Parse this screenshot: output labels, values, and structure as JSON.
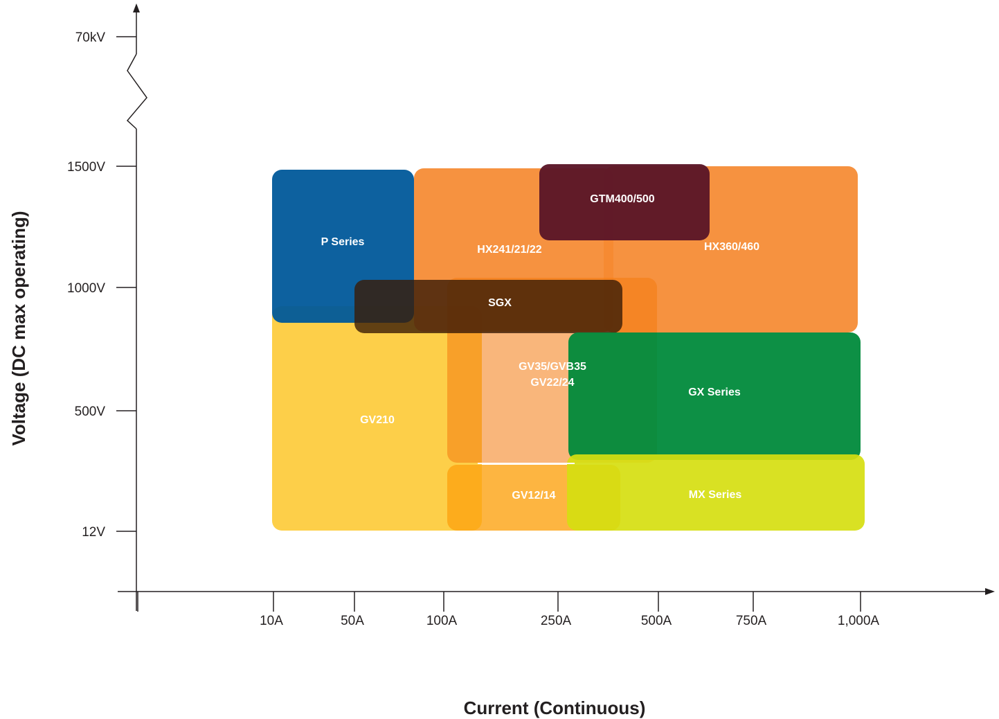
{
  "chart_data": {
    "type": "range-region",
    "title": "",
    "xlabel": "Current (Continuous)",
    "ylabel": "Voltage (DC max operating)",
    "x_ticks": [
      "10A",
      "50A",
      "100A",
      "250A",
      "500A",
      "750A",
      "1,000A"
    ],
    "y_ticks": [
      "12V",
      "500V",
      "1000V",
      "1500V",
      "70kV"
    ],
    "grid": false,
    "legend": "none",
    "regions": [
      {
        "name": "GV210",
        "label_lines": [
          "GV210"
        ],
        "x_range": [
          "10A",
          "100A+"
        ],
        "y_range": [
          "12V",
          "800V+"
        ],
        "color": "#fdcb3a",
        "opacity": 0.92
      },
      {
        "name": "P Series",
        "label_lines": [
          "P Series"
        ],
        "x_range": [
          "10A",
          "80A"
        ],
        "y_range": [
          "850V",
          "1500V"
        ],
        "color": "#00599a",
        "opacity": 0.95
      },
      {
        "name": "HX241/21/22",
        "label_lines": [
          "HX241/21/22"
        ],
        "x_range": [
          "80A",
          "300A"
        ],
        "y_range": [
          "800V",
          "1500V"
        ],
        "color": "#f58a31",
        "opacity": 0.93
      },
      {
        "name": "HX360/460",
        "label_lines": [
          "HX360/460"
        ],
        "x_range": [
          "300A",
          "1,000A"
        ],
        "y_range": [
          "800V",
          "1500V"
        ],
        "color": "#f58a31",
        "opacity": 0.93
      },
      {
        "name": "GV35/GVB35 GV22/24",
        "label_lines": [
          "GV35/GVB35",
          "GV22/24"
        ],
        "x_range": [
          "100A",
          "500A"
        ],
        "y_range": [
          "250V",
          "1050V"
        ],
        "color": "#f47a0e",
        "opacity": 0.55
      },
      {
        "name": "GV12/14",
        "label_lines": [
          "GV12/14"
        ],
        "x_range": [
          "100A",
          "300A"
        ],
        "y_range": [
          "12V",
          "270V"
        ],
        "color": "#fca212",
        "opacity": 0.8
      },
      {
        "name": "SGX",
        "label_lines": [
          "SGX"
        ],
        "x_range": [
          "50A",
          "350A"
        ],
        "y_range": [
          "800V",
          "1050V"
        ],
        "color": "#3a1b06",
        "opacity": 0.8
      },
      {
        "name": "GX Series",
        "label_lines": [
          "GX Series"
        ],
        "x_range": [
          "250A",
          "1,000A"
        ],
        "y_range": [
          "300V",
          "800V"
        ],
        "color": "#008a3b",
        "opacity": 0.95
      },
      {
        "name": "MX Series",
        "label_lines": [
          "MX Series"
        ],
        "x_range": [
          "250A",
          "1,000A"
        ],
        "y_range": [
          "12V",
          "300V"
        ],
        "color": "#d6de10",
        "opacity": 0.92
      },
      {
        "name": "GTM400/500",
        "label_lines": [
          "GTM400/500"
        ],
        "x_range": [
          "200A",
          "550A"
        ],
        "y_range": [
          "1200V",
          "1500V"
        ],
        "color": "#5b1628",
        "opacity": 0.96
      }
    ]
  }
}
